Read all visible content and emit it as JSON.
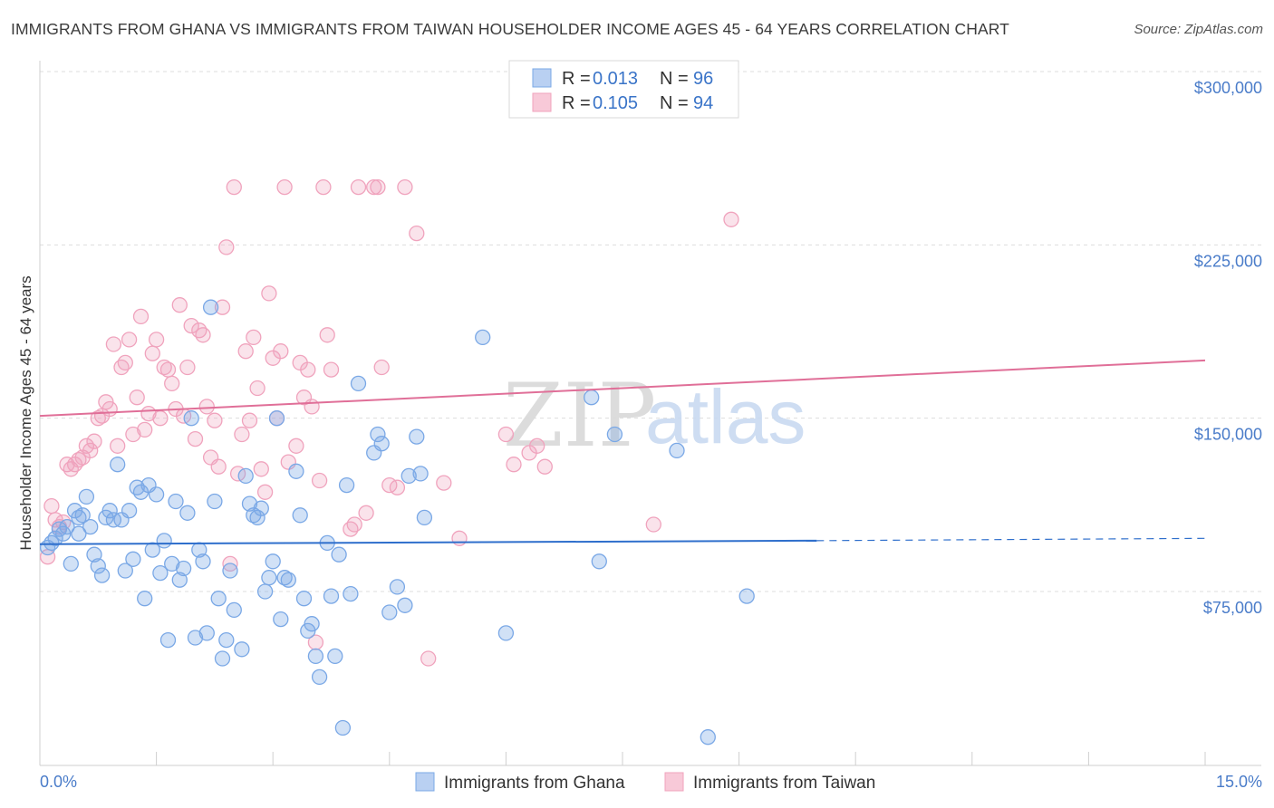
{
  "title": "IMMIGRANTS FROM GHANA VS IMMIGRANTS FROM TAIWAN HOUSEHOLDER INCOME AGES 45 - 64 YEARS CORRELATION CHART",
  "source": "Source: ZipAtlas.com",
  "watermark": {
    "zip": "ZIP",
    "atlas": "atlas"
  },
  "colors": {
    "ghana": "#7aa8e6",
    "ghana_fill": "rgba(122,168,230,0.35)",
    "ghana_line": "#2f6fcc",
    "taiwan": "#f0a3bd",
    "taiwan_fill": "rgba(240,163,189,0.30)",
    "taiwan_line": "#e06f98",
    "axis_text": "#4a7cc9",
    "grid": "#dddddd"
  },
  "legend": {
    "ghana": {
      "r_label": "R = ",
      "r_value": "0.013",
      "n_label": "N = ",
      "n_value": "96"
    },
    "taiwan": {
      "r_label": "R = ",
      "r_value": "0.105",
      "n_label": "N = ",
      "n_value": "94"
    }
  },
  "bottom_legend": {
    "ghana": "Immigrants from Ghana",
    "taiwan": "Immigrants from Taiwan"
  },
  "chart_data": {
    "type": "scatter",
    "title": "IMMIGRANTS FROM GHANA VS IMMIGRANTS FROM TAIWAN HOUSEHOLDER INCOME AGES 45 - 64 YEARS CORRELATION CHART",
    "xlabel": "",
    "ylabel": "Householder Income Ages 45 - 64 years",
    "xlim": [
      0,
      15.0
    ],
    "ylim": [
      0,
      310000
    ],
    "x_tick_labels": [
      "0.0%",
      "15.0%"
    ],
    "y_ticks": [
      75000,
      150000,
      225000,
      300000
    ],
    "y_tick_labels": [
      "$75,000",
      "$150,000",
      "$225,000",
      "$300,000"
    ],
    "grid": true,
    "legend_position": "top-center",
    "series": [
      {
        "name": "Immigrants from Ghana",
        "trend": {
          "x_start": 0.0,
          "y_start": 95500,
          "x_solid_end": 10.0,
          "y_solid_end": 97000,
          "x_end": 15.0,
          "y_end": 98000
        },
        "points": [
          [
            0.1,
            94000
          ],
          [
            0.15,
            96000
          ],
          [
            0.2,
            98000
          ],
          [
            0.25,
            102000
          ],
          [
            0.3,
            100000
          ],
          [
            0.35,
            103000
          ],
          [
            0.4,
            87000
          ],
          [
            0.45,
            110000
          ],
          [
            0.5,
            100000
          ],
          [
            0.55,
            108000
          ],
          [
            0.6,
            116000
          ],
          [
            0.65,
            103000
          ],
          [
            0.7,
            91000
          ],
          [
            0.75,
            86000
          ],
          [
            0.8,
            82000
          ],
          [
            0.85,
            107000
          ],
          [
            0.9,
            110000
          ],
          [
            0.95,
            106000
          ],
          [
            1.0,
            130000
          ],
          [
            1.05,
            106000
          ],
          [
            1.1,
            84000
          ],
          [
            1.15,
            110000
          ],
          [
            1.2,
            89000
          ],
          [
            1.25,
            120000
          ],
          [
            1.3,
            118000
          ],
          [
            1.35,
            72000
          ],
          [
            1.4,
            121000
          ],
          [
            1.45,
            93000
          ],
          [
            1.5,
            117000
          ],
          [
            1.55,
            83000
          ],
          [
            1.6,
            97000
          ],
          [
            1.65,
            54000
          ],
          [
            1.7,
            87000
          ],
          [
            1.75,
            114000
          ],
          [
            1.8,
            80000
          ],
          [
            1.85,
            85000
          ],
          [
            1.9,
            109000
          ],
          [
            1.95,
            150000
          ],
          [
            2.0,
            55000
          ],
          [
            2.05,
            93000
          ],
          [
            2.1,
            88000
          ],
          [
            2.15,
            57000
          ],
          [
            2.2,
            198000
          ],
          [
            2.25,
            114000
          ],
          [
            2.3,
            72000
          ],
          [
            2.35,
            46000
          ],
          [
            2.4,
            54000
          ],
          [
            2.45,
            84000
          ],
          [
            2.5,
            67000
          ],
          [
            2.6,
            50000
          ],
          [
            2.65,
            125000
          ],
          [
            2.7,
            113000
          ],
          [
            2.75,
            108000
          ],
          [
            2.8,
            107000
          ],
          [
            2.85,
            111000
          ],
          [
            2.9,
            75000
          ],
          [
            2.95,
            81000
          ],
          [
            3.0,
            88000
          ],
          [
            3.05,
            150000
          ],
          [
            3.1,
            63000
          ],
          [
            3.15,
            81000
          ],
          [
            3.2,
            80000
          ],
          [
            3.3,
            127000
          ],
          [
            3.35,
            108000
          ],
          [
            3.4,
            72000
          ],
          [
            3.45,
            58000
          ],
          [
            3.5,
            61000
          ],
          [
            3.55,
            47000
          ],
          [
            3.6,
            38000
          ],
          [
            3.7,
            96000
          ],
          [
            3.75,
            73000
          ],
          [
            3.8,
            47000
          ],
          [
            3.85,
            91000
          ],
          [
            3.9,
            16000
          ],
          [
            3.95,
            121000
          ],
          [
            4.0,
            74000
          ],
          [
            4.1,
            165000
          ],
          [
            4.3,
            135000
          ],
          [
            4.35,
            143000
          ],
          [
            4.4,
            139000
          ],
          [
            4.5,
            66000
          ],
          [
            4.6,
            77000
          ],
          [
            4.7,
            69000
          ],
          [
            4.75,
            125000
          ],
          [
            4.85,
            142000
          ],
          [
            4.9,
            126000
          ],
          [
            4.95,
            107000
          ],
          [
            5.7,
            185000
          ],
          [
            6.0,
            57000
          ],
          [
            7.1,
            159000
          ],
          [
            7.2,
            88000
          ],
          [
            7.4,
            143000
          ],
          [
            8.2,
            136000
          ],
          [
            8.6,
            12000
          ],
          [
            9.1,
            73000
          ],
          [
            0.5,
            107000
          ]
        ]
      },
      {
        "name": "Immigrants from Taiwan",
        "trend": {
          "x_start": 0.0,
          "y_start": 151000,
          "x_end": 15.0,
          "y_end": 175000
        },
        "points": [
          [
            0.1,
            90000
          ],
          [
            0.15,
            112000
          ],
          [
            0.2,
            106000
          ],
          [
            0.25,
            103000
          ],
          [
            0.3,
            105000
          ],
          [
            0.35,
            130000
          ],
          [
            0.4,
            128000
          ],
          [
            0.45,
            130000
          ],
          [
            0.5,
            132000
          ],
          [
            0.55,
            133000
          ],
          [
            0.6,
            138000
          ],
          [
            0.65,
            136000
          ],
          [
            0.7,
            140000
          ],
          [
            0.75,
            150000
          ],
          [
            0.8,
            151000
          ],
          [
            0.85,
            157000
          ],
          [
            0.9,
            154000
          ],
          [
            0.95,
            182000
          ],
          [
            1.0,
            138000
          ],
          [
            1.05,
            172000
          ],
          [
            1.1,
            174000
          ],
          [
            1.15,
            184000
          ],
          [
            1.2,
            143000
          ],
          [
            1.25,
            159000
          ],
          [
            1.3,
            194000
          ],
          [
            1.35,
            145000
          ],
          [
            1.4,
            152000
          ],
          [
            1.45,
            178000
          ],
          [
            1.5,
            184000
          ],
          [
            1.55,
            150000
          ],
          [
            1.6,
            172000
          ],
          [
            1.65,
            171000
          ],
          [
            1.7,
            165000
          ],
          [
            1.75,
            154000
          ],
          [
            1.8,
            199000
          ],
          [
            1.85,
            151000
          ],
          [
            1.9,
            172000
          ],
          [
            1.95,
            190000
          ],
          [
            2.0,
            141000
          ],
          [
            2.05,
            188000
          ],
          [
            2.1,
            186000
          ],
          [
            2.15,
            155000
          ],
          [
            2.2,
            133000
          ],
          [
            2.25,
            149000
          ],
          [
            2.3,
            129000
          ],
          [
            2.35,
            198000
          ],
          [
            2.4,
            224000
          ],
          [
            2.45,
            87000
          ],
          [
            2.5,
            250000
          ],
          [
            2.55,
            126000
          ],
          [
            2.6,
            143000
          ],
          [
            2.65,
            179000
          ],
          [
            2.7,
            149000
          ],
          [
            2.75,
            185000
          ],
          [
            2.8,
            163000
          ],
          [
            2.85,
            128000
          ],
          [
            2.9,
            118000
          ],
          [
            2.95,
            204000
          ],
          [
            3.0,
            176000
          ],
          [
            3.05,
            150000
          ],
          [
            3.1,
            179000
          ],
          [
            3.15,
            250000
          ],
          [
            3.2,
            131000
          ],
          [
            3.3,
            138000
          ],
          [
            3.35,
            174000
          ],
          [
            3.4,
            159000
          ],
          [
            3.45,
            171000
          ],
          [
            3.5,
            155000
          ],
          [
            3.55,
            53000
          ],
          [
            3.6,
            123000
          ],
          [
            3.65,
            250000
          ],
          [
            3.7,
            186000
          ],
          [
            3.75,
            171000
          ],
          [
            4.0,
            102000
          ],
          [
            4.05,
            104000
          ],
          [
            4.1,
            250000
          ],
          [
            4.2,
            109000
          ],
          [
            4.3,
            250000
          ],
          [
            4.35,
            250000
          ],
          [
            4.4,
            172000
          ],
          [
            4.5,
            121000
          ],
          [
            4.6,
            120000
          ],
          [
            4.7,
            250000
          ],
          [
            4.85,
            230000
          ],
          [
            5.0,
            46000
          ],
          [
            5.2,
            122000
          ],
          [
            5.4,
            98000
          ],
          [
            6.0,
            143000
          ],
          [
            6.1,
            130000
          ],
          [
            6.3,
            135000
          ],
          [
            6.4,
            138000
          ],
          [
            6.5,
            129000
          ],
          [
            7.9,
            104000
          ],
          [
            8.9,
            236000
          ]
        ]
      }
    ]
  }
}
